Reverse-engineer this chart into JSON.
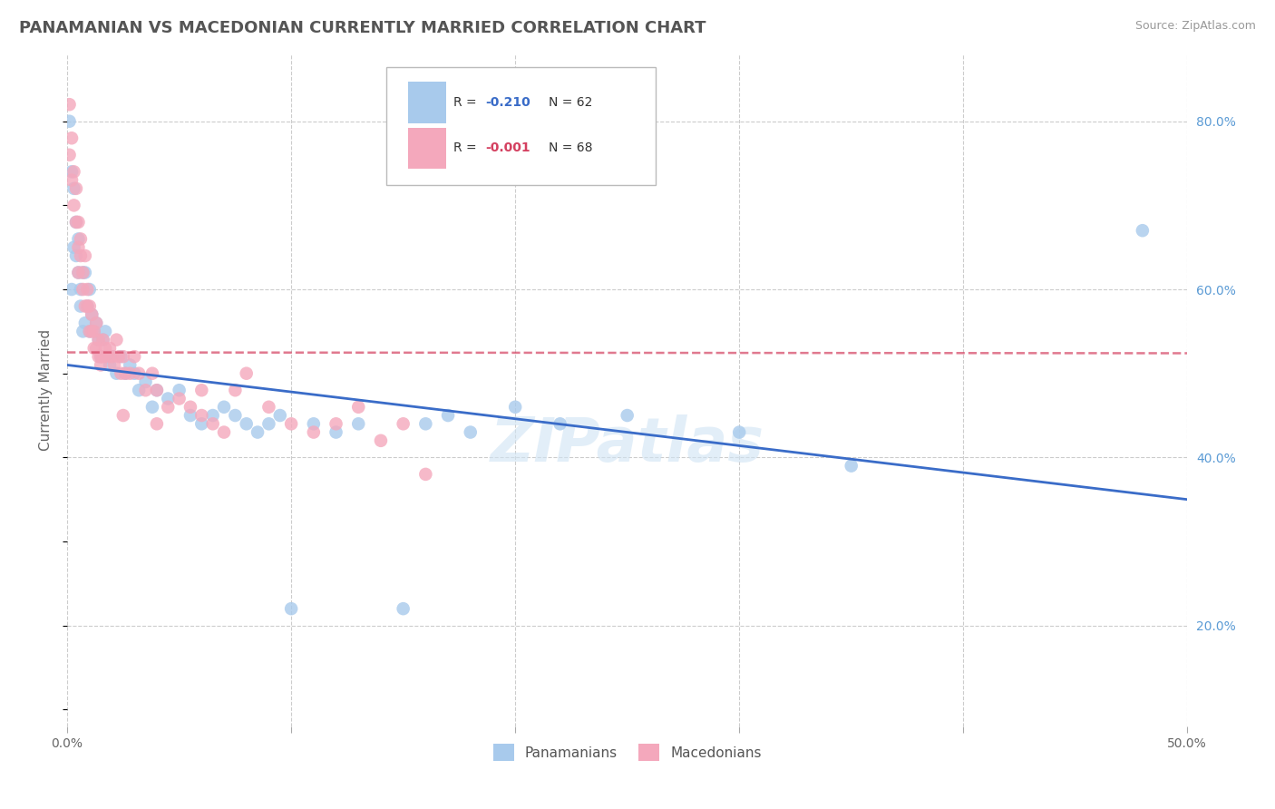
{
  "title": "PANAMANIAN VS MACEDONIAN CURRENTLY MARRIED CORRELATION CHART",
  "source": "Source: ZipAtlas.com",
  "ylabel": "Currently Married",
  "legend_blue_label": "Panamanians",
  "legend_pink_label": "Macedonians",
  "xlim": [
    0.0,
    0.5
  ],
  "ylim": [
    0.08,
    0.88
  ],
  "yticks": [
    0.2,
    0.4,
    0.6,
    0.8
  ],
  "ytick_labels": [
    "20.0%",
    "40.0%",
    "60.0%",
    "80.0%"
  ],
  "xticks": [
    0.0,
    0.1,
    0.2,
    0.3,
    0.4,
    0.5
  ],
  "xtick_labels": [
    "0.0%",
    "",
    "",
    "",
    "",
    "50.0%"
  ],
  "watermark": "ZIPatlas",
  "blue_color": "#A8CAEC",
  "pink_color": "#F4A8BC",
  "blue_line_color": "#3A6CC8",
  "pink_line_color": "#D44060",
  "background_color": "#FFFFFF",
  "grid_color": "#CCCCCC",
  "blue_r": "-0.210",
  "blue_n": "62",
  "pink_r": "-0.001",
  "pink_n": "68",
  "pan_x": [
    0.001,
    0.002,
    0.002,
    0.003,
    0.003,
    0.004,
    0.004,
    0.005,
    0.005,
    0.006,
    0.006,
    0.007,
    0.007,
    0.008,
    0.008,
    0.009,
    0.01,
    0.01,
    0.011,
    0.012,
    0.013,
    0.014,
    0.015,
    0.016,
    0.017,
    0.018,
    0.019,
    0.02,
    0.022,
    0.024,
    0.026,
    0.028,
    0.03,
    0.032,
    0.035,
    0.038,
    0.04,
    0.045,
    0.05,
    0.055,
    0.06,
    0.065,
    0.07,
    0.075,
    0.08,
    0.085,
    0.09,
    0.095,
    0.1,
    0.11,
    0.12,
    0.13,
    0.15,
    0.16,
    0.17,
    0.18,
    0.2,
    0.22,
    0.25,
    0.3,
    0.35,
    0.48
  ],
  "pan_y": [
    0.8,
    0.74,
    0.6,
    0.72,
    0.65,
    0.68,
    0.64,
    0.62,
    0.66,
    0.6,
    0.58,
    0.62,
    0.55,
    0.56,
    0.62,
    0.58,
    0.6,
    0.55,
    0.57,
    0.55,
    0.56,
    0.54,
    0.52,
    0.54,
    0.55,
    0.52,
    0.51,
    0.52,
    0.5,
    0.52,
    0.5,
    0.51,
    0.5,
    0.48,
    0.49,
    0.46,
    0.48,
    0.47,
    0.48,
    0.45,
    0.44,
    0.45,
    0.46,
    0.45,
    0.44,
    0.43,
    0.44,
    0.45,
    0.22,
    0.44,
    0.43,
    0.44,
    0.22,
    0.44,
    0.45,
    0.43,
    0.46,
    0.44,
    0.45,
    0.43,
    0.39,
    0.67
  ],
  "mac_x": [
    0.001,
    0.001,
    0.002,
    0.002,
    0.003,
    0.003,
    0.004,
    0.004,
    0.005,
    0.005,
    0.005,
    0.006,
    0.006,
    0.007,
    0.007,
    0.008,
    0.008,
    0.009,
    0.009,
    0.01,
    0.01,
    0.011,
    0.011,
    0.012,
    0.012,
    0.013,
    0.013,
    0.014,
    0.014,
    0.015,
    0.015,
    0.016,
    0.016,
    0.017,
    0.018,
    0.019,
    0.02,
    0.021,
    0.022,
    0.023,
    0.024,
    0.025,
    0.026,
    0.028,
    0.03,
    0.032,
    0.035,
    0.038,
    0.04,
    0.045,
    0.05,
    0.055,
    0.06,
    0.065,
    0.07,
    0.075,
    0.08,
    0.09,
    0.1,
    0.11,
    0.12,
    0.13,
    0.14,
    0.15,
    0.16,
    0.04,
    0.025,
    0.06
  ],
  "mac_y": [
    0.82,
    0.76,
    0.73,
    0.78,
    0.7,
    0.74,
    0.68,
    0.72,
    0.65,
    0.68,
    0.62,
    0.64,
    0.66,
    0.6,
    0.62,
    0.58,
    0.64,
    0.58,
    0.6,
    0.55,
    0.58,
    0.55,
    0.57,
    0.53,
    0.55,
    0.53,
    0.56,
    0.52,
    0.54,
    0.51,
    0.52,
    0.52,
    0.54,
    0.53,
    0.52,
    0.53,
    0.52,
    0.51,
    0.54,
    0.52,
    0.5,
    0.52,
    0.5,
    0.5,
    0.52,
    0.5,
    0.48,
    0.5,
    0.48,
    0.46,
    0.47,
    0.46,
    0.45,
    0.44,
    0.43,
    0.48,
    0.5,
    0.46,
    0.44,
    0.43,
    0.44,
    0.46,
    0.42,
    0.44,
    0.38,
    0.44,
    0.45,
    0.48
  ]
}
